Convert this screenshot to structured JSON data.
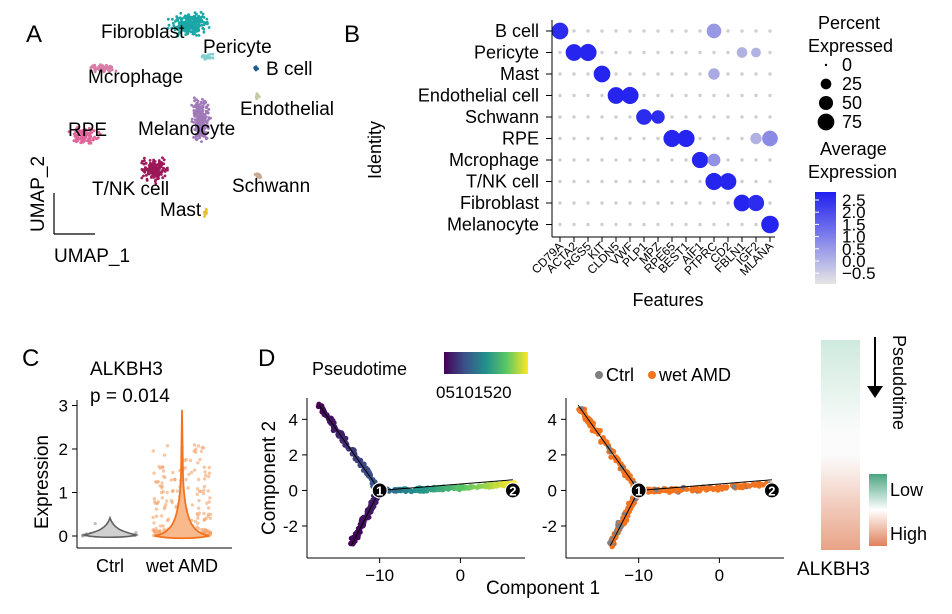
{
  "panels": {
    "a": "A",
    "b": "B",
    "c": "C",
    "d": "D"
  },
  "umap": {
    "xlabel": "UMAP_1",
    "ylabel": "UMAP_2",
    "clusters": [
      {
        "name": "Fibroblast",
        "color": "#1aa7a6"
      },
      {
        "name": "Pericyte",
        "color": "#7fd0cf"
      },
      {
        "name": "B cell",
        "color": "#1c5b8a"
      },
      {
        "name": "Mcrophage",
        "color": "#d87fa8"
      },
      {
        "name": "Endothelial",
        "color": "#c9c9a0"
      },
      {
        "name": "RPE",
        "color": "#e0659a"
      },
      {
        "name": "Melanocyte",
        "color": "#a079b8"
      },
      {
        "name": "T/NK cell",
        "color": "#9c1858"
      },
      {
        "name": "Schwann",
        "color": "#c8ad96"
      },
      {
        "name": "Mast",
        "color": "#e6c229"
      }
    ]
  },
  "chart_data": [
    {
      "type": "scatter",
      "subtype": "dotplot",
      "xlabel": "Features",
      "ylabel": "Identity",
      "features": [
        "CD79A",
        "ACTA2",
        "RGS5",
        "KIT",
        "CLDN5",
        "VWF",
        "PLP1",
        "MPZ",
        "RPE65",
        "BEST1",
        "AIF1",
        "PTPRC",
        "CD2",
        "FBLN1",
        "IGF2",
        "MLANA"
      ],
      "identities": [
        "B cell",
        "Pericyte",
        "Mast",
        "Endothelial cell",
        "Schwann",
        "RPE",
        "Mcrophage",
        "T/NK cell",
        "Fibroblast",
        "Melanocyte"
      ],
      "dots": [
        {
          "identity": "B cell",
          "feature": "CD79A",
          "pct": 75,
          "avg": 2.3
        },
        {
          "identity": "B cell",
          "feature": "PTPRC",
          "pct": 55,
          "avg": 0.6
        },
        {
          "identity": "Pericyte",
          "feature": "ACTA2",
          "pct": 75,
          "avg": 2.4
        },
        {
          "identity": "Pericyte",
          "feature": "RGS5",
          "pct": 80,
          "avg": 2.4
        },
        {
          "identity": "Pericyte",
          "feature": "FBLN1",
          "pct": 25,
          "avg": 0.2
        },
        {
          "identity": "Pericyte",
          "feature": "IGF2",
          "pct": 20,
          "avg": 0.2
        },
        {
          "identity": "Mast",
          "feature": "KIT",
          "pct": 75,
          "avg": 2.4
        },
        {
          "identity": "Mast",
          "feature": "PTPRC",
          "pct": 30,
          "avg": 0.3
        },
        {
          "identity": "Endothelial cell",
          "feature": "CLDN5",
          "pct": 75,
          "avg": 2.4
        },
        {
          "identity": "Endothelial cell",
          "feature": "VWF",
          "pct": 80,
          "avg": 2.4
        },
        {
          "identity": "Schwann",
          "feature": "PLP1",
          "pct": 65,
          "avg": 2.3
        },
        {
          "identity": "Schwann",
          "feature": "MPZ",
          "pct": 45,
          "avg": 2.3
        },
        {
          "identity": "RPE",
          "feature": "RPE65",
          "pct": 80,
          "avg": 2.4
        },
        {
          "identity": "RPE",
          "feature": "BEST1",
          "pct": 80,
          "avg": 2.4
        },
        {
          "identity": "RPE",
          "feature": "MLANA",
          "pct": 65,
          "avg": 0.8
        },
        {
          "identity": "RPE",
          "feature": "IGF2",
          "pct": 30,
          "avg": 0.2
        },
        {
          "identity": "Mcrophage",
          "feature": "AIF1",
          "pct": 70,
          "avg": 2.4
        },
        {
          "identity": "Mcrophage",
          "feature": "PTPRC",
          "pct": 40,
          "avg": 0.7
        },
        {
          "identity": "T/NK cell",
          "feature": "PTPRC",
          "pct": 80,
          "avg": 2.4
        },
        {
          "identity": "T/NK cell",
          "feature": "CD2",
          "pct": 75,
          "avg": 2.4
        },
        {
          "identity": "Fibroblast",
          "feature": "FBLN1",
          "pct": 75,
          "avg": 2.4
        },
        {
          "identity": "Fibroblast",
          "feature": "IGF2",
          "pct": 70,
          "avg": 2.3
        },
        {
          "identity": "Melanocyte",
          "feature": "MLANA",
          "pct": 85,
          "avg": 2.4
        }
      ],
      "legend_size": {
        "title_lines": [
          "Percent",
          "Expressed"
        ],
        "values": [
          0,
          25,
          50,
          75
        ]
      },
      "legend_color": {
        "title_lines": [
          "Average",
          "Expression"
        ],
        "ticks": [
          "2.5",
          "2.0",
          "1.5",
          "1.0",
          "0.5",
          "0.0",
          "−0.5"
        ],
        "low_color": "#dedede",
        "high_color": "#1f1ff0"
      }
    },
    {
      "type": "violin",
      "title": "ALKBH3",
      "subtitle": "p = 0.014",
      "ylabel": "Expression",
      "categories": [
        "Ctrl",
        "wet AMD"
      ],
      "colors": [
        "#808080",
        "#f4731f"
      ],
      "yticks": [
        0,
        1,
        2,
        3
      ],
      "ylim": [
        -0.1,
        3.1
      ]
    },
    {
      "type": "scatter",
      "subtype": "trajectory",
      "xlabel": "Component 1",
      "ylabel": "Component 2",
      "xticks": [
        -10,
        0
      ],
      "yticks": [
        -2,
        0,
        2,
        4
      ],
      "xlim": [
        -19,
        8
      ],
      "ylim": [
        -3.8,
        5.2
      ],
      "branches": [
        {
          "from": [
            -10,
            0
          ],
          "to": [
            -17.5,
            4.8
          ]
        },
        {
          "from": [
            -10,
            0
          ],
          "to": [
            -13.5,
            -3.1
          ]
        },
        {
          "from": [
            -10,
            0
          ],
          "to": [
            6.5,
            0.6
          ]
        }
      ],
      "nodes": [
        {
          "label": "1",
          "x": -10,
          "y": 0
        },
        {
          "label": "2",
          "x": 6.5,
          "y": 0
        }
      ],
      "left_plot": {
        "legend_title": "Pseudotime",
        "color_ticks": [
          "0",
          "5",
          "10",
          "15",
          "20"
        ],
        "colormap": [
          "#440154",
          "#3b528b",
          "#21908d",
          "#5dc863",
          "#fde725"
        ]
      },
      "right_plot": {
        "legend": [
          {
            "name": "Ctrl",
            "color": "#7f7f7f"
          },
          {
            "name": "wet AMD",
            "color": "#f4731f"
          }
        ]
      }
    },
    {
      "type": "heatmap",
      "gene": "ALKBH3",
      "arrow_label": "Pseudotime",
      "legend": [
        "Low",
        "High"
      ],
      "top_color": "#cfeade",
      "bottom_color": "#e9a286",
      "low_color": "#4aa581",
      "high_color": "#e2805a"
    }
  ]
}
